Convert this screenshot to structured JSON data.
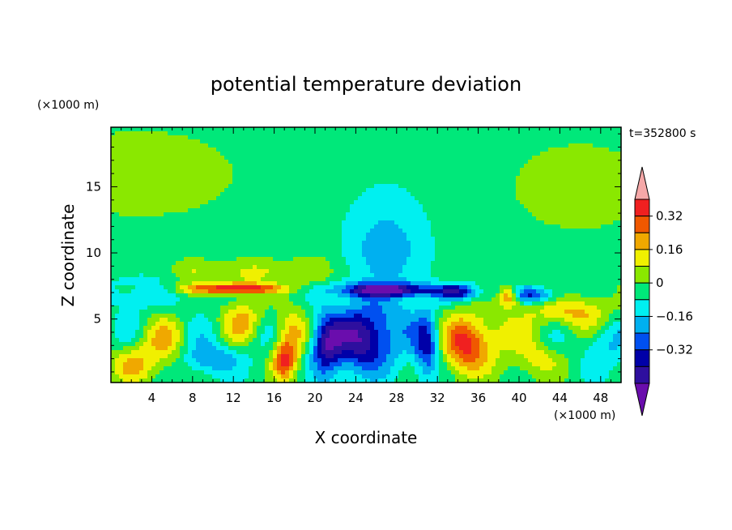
{
  "chart_data": {
    "type": "heatmap",
    "title": "potential temperature deviation",
    "xlabel": "X coordinate",
    "ylabel": "Z coordinate",
    "x_unit": "(×1000 m)",
    "y_unit": "(×1000 m)",
    "time_label": "t=352800 s",
    "xlim": [
      0,
      50
    ],
    "ylim": [
      0.2,
      19.5
    ],
    "x_ticks": [
      4,
      8,
      12,
      16,
      20,
      24,
      28,
      32,
      36,
      40,
      44,
      48
    ],
    "y_ticks": [
      5,
      10,
      15
    ],
    "colorbar": {
      "levels": [
        -0.4,
        -0.32,
        -0.24,
        -0.16,
        -0.08,
        0,
        0.08,
        0.16,
        0.24,
        0.32,
        0.4
      ],
      "colors": [
        "#6a0dad",
        "#2e0f9e",
        "#0000a8",
        "#0050f0",
        "#00b0f0",
        "#00f0f0",
        "#00e87a",
        "#8ae800",
        "#f0f000",
        "#f0a800",
        "#f05800",
        "#f02020",
        "#f5a8a8"
      ],
      "labels": [
        "0.32",
        "0.16",
        "0",
        "−0.16",
        "−0.32"
      ],
      "extend": "both"
    },
    "background_level": 0.04,
    "features": [
      {
        "x": 3,
        "z": 16,
        "sx": 14,
        "sz": 5,
        "v": 0.06
      },
      {
        "x": 46,
        "z": 15,
        "sx": 10,
        "sz": 5,
        "v": 0.06
      },
      {
        "x": 27,
        "z": 12,
        "sx": 5,
        "sz": 5,
        "v": -0.06
      },
      {
        "x": 27,
        "z": 10,
        "sx": 3.5,
        "sz": 3,
        "v": -0.12
      },
      {
        "x": 3,
        "z": 7,
        "sx": 4,
        "sz": 1.5,
        "v": -0.1
      },
      {
        "x": 12,
        "z": 7.3,
        "sx": 5,
        "sz": 0.4,
        "v": 0.4
      },
      {
        "x": 14,
        "z": 8.5,
        "sx": 3,
        "sz": 1,
        "v": 0.14
      },
      {
        "x": 20,
        "z": 8.7,
        "sx": 2.5,
        "sz": 1.2,
        "v": 0.1
      },
      {
        "x": 8,
        "z": 8.5,
        "sx": 2,
        "sz": 1,
        "v": 0.12
      },
      {
        "x": 27,
        "z": 7.2,
        "sx": 5,
        "sz": 0.5,
        "v": -0.45
      },
      {
        "x": 25,
        "z": 3.5,
        "sx": 3,
        "sz": 2.5,
        "v": -0.45
      },
      {
        "x": 21,
        "z": 3,
        "sx": 1.5,
        "sz": 2.5,
        "v": -0.35
      },
      {
        "x": 17,
        "z": 1.8,
        "sx": 1.2,
        "sz": 1.5,
        "v": 0.35
      },
      {
        "x": 17.5,
        "z": 4,
        "sx": 1.5,
        "sz": 2,
        "v": 0.18
      },
      {
        "x": 35,
        "z": 3,
        "sx": 2.2,
        "sz": 2.2,
        "v": 0.38
      },
      {
        "x": 37.5,
        "z": 4,
        "sx": 2,
        "sz": 2.2,
        "v": 0.12
      },
      {
        "x": 31,
        "z": 3,
        "sx": 1.2,
        "sz": 2.5,
        "v": -0.3
      },
      {
        "x": 39,
        "z": 6.7,
        "sx": 1,
        "sz": 0.7,
        "v": 0.4
      },
      {
        "x": 45,
        "z": 5.5,
        "sx": 4,
        "sz": 1.3,
        "v": 0.22
      },
      {
        "x": 48,
        "z": 3,
        "sx": 2,
        "sz": 2,
        "v": -0.15
      },
      {
        "x": 5,
        "z": 3,
        "sx": 2.5,
        "sz": 2,
        "v": 0.15
      },
      {
        "x": 10,
        "z": 2,
        "sx": 3,
        "sz": 1.2,
        "v": -0.2
      },
      {
        "x": 2,
        "z": 1.5,
        "sx": 2,
        "sz": 1.5,
        "v": 0.2
      },
      {
        "x": 42,
        "z": 2,
        "sx": 2.5,
        "sz": 1.5,
        "v": 0.15
      },
      {
        "x": 28,
        "z": 5.5,
        "sx": 2,
        "sz": 1.5,
        "v": -0.05
      },
      {
        "x": 13,
        "z": 5,
        "sx": 2,
        "sz": 1.5,
        "v": 0.18
      },
      {
        "x": 41,
        "z": 6.8,
        "sx": 3,
        "sz": 0.6,
        "v": -0.3
      },
      {
        "x": 34,
        "z": 7,
        "sx": 2,
        "sz": 0.6,
        "v": -0.3
      }
    ]
  }
}
